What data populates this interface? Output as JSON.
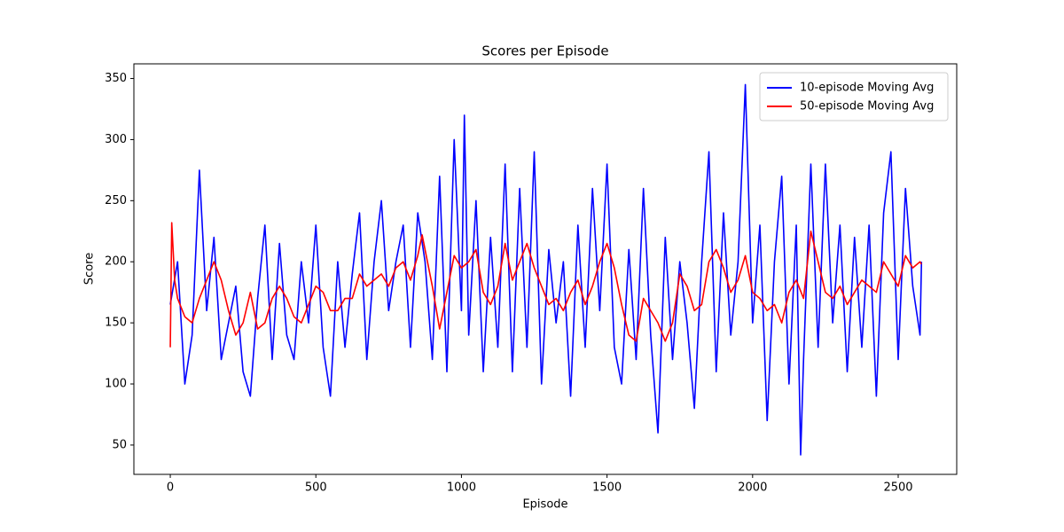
{
  "chart_data": {
    "type": "line",
    "title": "Scores per Episode",
    "x_label": "Episode",
    "y_label": "Score",
    "xlim": [
      -125,
      2701
    ],
    "ylim": [
      26,
      362
    ],
    "xticks": [
      0,
      500,
      1000,
      1500,
      2000,
      2500
    ],
    "yticks": [
      50,
      100,
      150,
      200,
      250,
      300,
      350
    ],
    "grid": false,
    "legend": "upper right",
    "series": [
      {
        "name": "10-episode Moving Avg",
        "color": "#0000ff",
        "x": [
          0,
          25,
          50,
          75,
          100,
          125,
          150,
          175,
          200,
          225,
          250,
          275,
          300,
          325,
          350,
          375,
          400,
          425,
          450,
          475,
          500,
          525,
          550,
          575,
          600,
          625,
          650,
          675,
          700,
          725,
          750,
          775,
          800,
          825,
          850,
          875,
          900,
          925,
          950,
          975,
          1000,
          1010,
          1025,
          1050,
          1075,
          1100,
          1125,
          1150,
          1175,
          1200,
          1225,
          1250,
          1275,
          1300,
          1325,
          1350,
          1375,
          1400,
          1425,
          1450,
          1475,
          1500,
          1525,
          1550,
          1575,
          1600,
          1625,
          1650,
          1675,
          1700,
          1725,
          1750,
          1775,
          1800,
          1825,
          1850,
          1875,
          1900,
          1925,
          1950,
          1975,
          2000,
          2025,
          2050,
          2075,
          2100,
          2125,
          2150,
          2165,
          2175,
          2200,
          2225,
          2250,
          2275,
          2300,
          2325,
          2350,
          2375,
          2400,
          2425,
          2450,
          2475,
          2500,
          2525,
          2550,
          2575,
          2580
        ],
        "values": [
          165,
          200,
          100,
          140,
          275,
          160,
          220,
          120,
          150,
          180,
          110,
          90,
          170,
          230,
          120,
          215,
          140,
          120,
          200,
          150,
          230,
          130,
          90,
          200,
          130,
          190,
          240,
          120,
          200,
          250,
          160,
          200,
          230,
          130,
          240,
          200,
          120,
          270,
          110,
          300,
          160,
          320,
          140,
          250,
          110,
          220,
          130,
          280,
          110,
          260,
          130,
          290,
          100,
          210,
          150,
          200,
          90,
          230,
          130,
          260,
          160,
          280,
          130,
          100,
          210,
          120,
          260,
          140,
          60,
          220,
          120,
          200,
          150,
          80,
          200,
          290,
          110,
          240,
          140,
          200,
          345,
          150,
          230,
          70,
          200,
          270,
          100,
          230,
          42,
          120,
          280,
          130,
          280,
          150,
          230,
          110,
          220,
          130,
          230,
          90,
          240,
          290,
          120,
          260,
          180,
          140,
          200
        ]
      },
      {
        "name": "50-episode Moving Avg",
        "color": "#ff0000",
        "x": [
          0,
          5,
          15,
          25,
          50,
          75,
          100,
          125,
          150,
          175,
          200,
          225,
          250,
          275,
          300,
          325,
          350,
          375,
          400,
          425,
          450,
          475,
          500,
          525,
          550,
          575,
          600,
          625,
          650,
          675,
          700,
          725,
          750,
          775,
          800,
          825,
          850,
          865,
          900,
          925,
          950,
          975,
          1000,
          1025,
          1050,
          1075,
          1100,
          1125,
          1150,
          1175,
          1200,
          1225,
          1250,
          1275,
          1300,
          1325,
          1350,
          1375,
          1400,
          1425,
          1450,
          1475,
          1500,
          1525,
          1550,
          1575,
          1600,
          1625,
          1650,
          1675,
          1700,
          1725,
          1750,
          1775,
          1800,
          1825,
          1850,
          1875,
          1900,
          1925,
          1950,
          1975,
          2000,
          2025,
          2050,
          2075,
          2100,
          2125,
          2150,
          2175,
          2200,
          2225,
          2250,
          2275,
          2300,
          2325,
          2350,
          2375,
          2400,
          2425,
          2450,
          2475,
          2500,
          2525,
          2550,
          2575,
          2580
        ],
        "values": [
          130,
          232,
          185,
          170,
          155,
          150,
          170,
          185,
          200,
          185,
          160,
          140,
          150,
          175,
          145,
          150,
          170,
          180,
          170,
          155,
          150,
          165,
          180,
          175,
          160,
          160,
          170,
          170,
          190,
          180,
          185,
          190,
          180,
          195,
          200,
          185,
          205,
          222,
          180,
          145,
          175,
          205,
          195,
          200,
          210,
          175,
          165,
          180,
          215,
          185,
          200,
          215,
          195,
          180,
          165,
          170,
          160,
          175,
          185,
          165,
          180,
          200,
          215,
          195,
          165,
          140,
          135,
          170,
          160,
          150,
          135,
          150,
          190,
          180,
          160,
          165,
          200,
          210,
          195,
          175,
          185,
          205,
          175,
          170,
          160,
          165,
          150,
          175,
          185,
          170,
          225,
          200,
          175,
          170,
          180,
          165,
          175,
          185,
          180,
          175,
          200,
          190,
          180,
          205,
          195,
          200,
          198
        ]
      }
    ]
  }
}
